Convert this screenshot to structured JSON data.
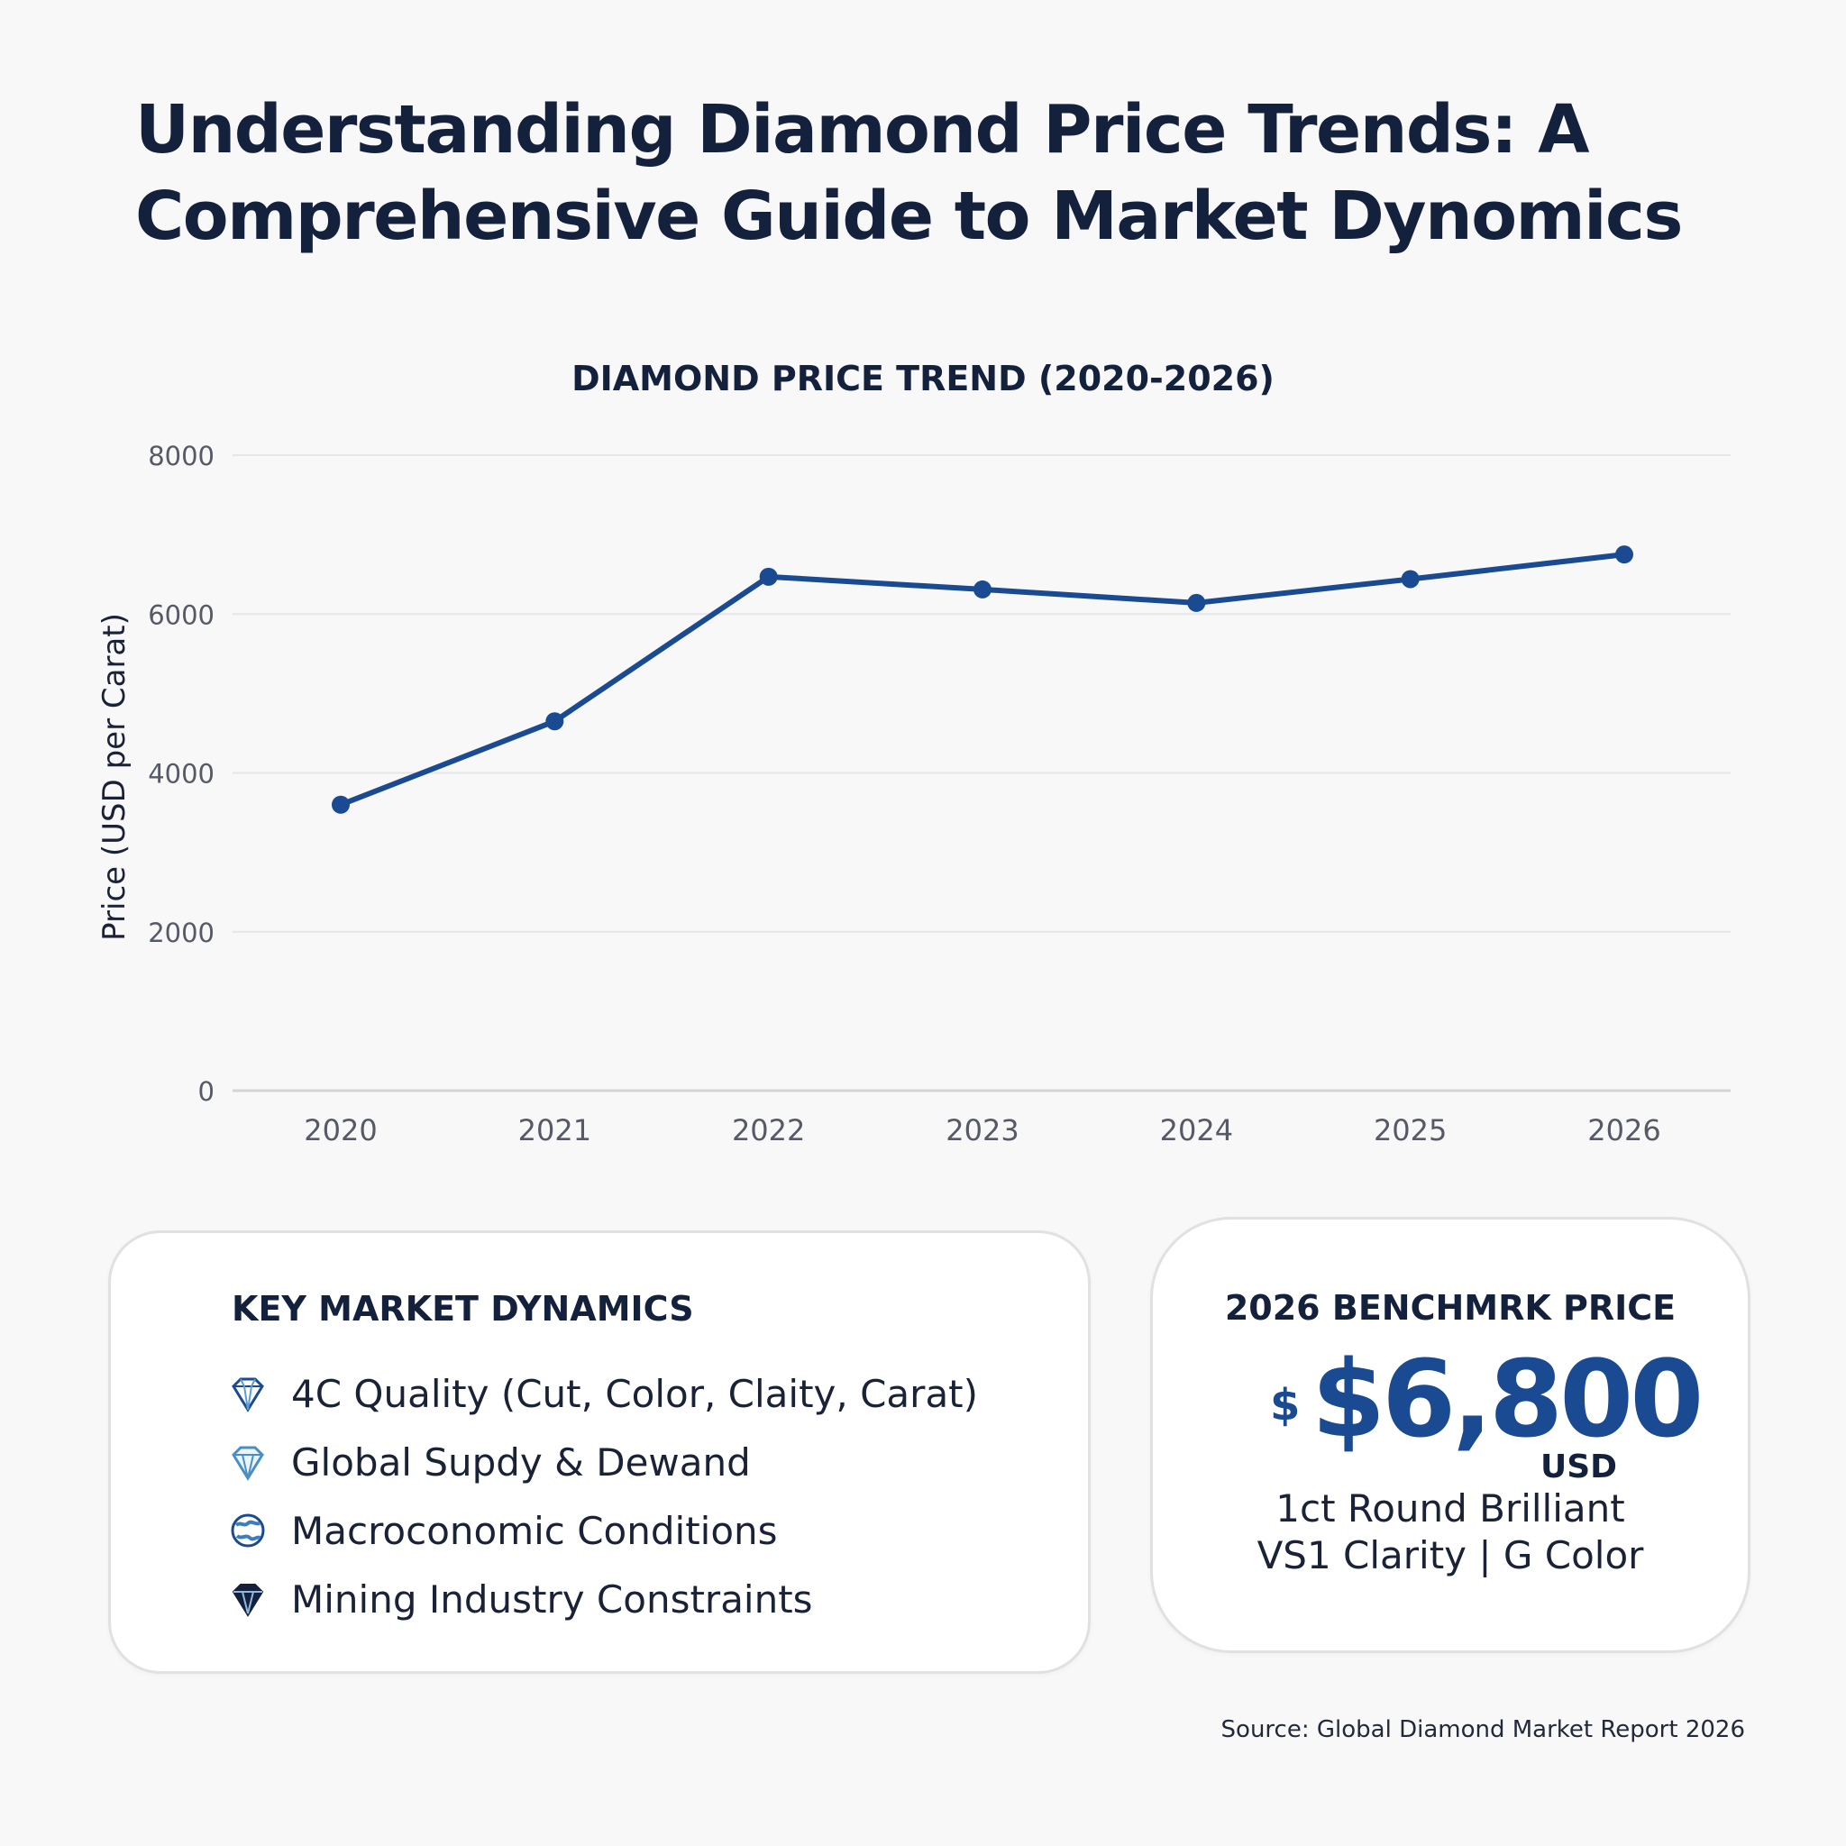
{
  "page": {
    "title_line1": "Understanding Diamond Price Trends: A",
    "title_line2": "Comprehensive Guide to Market Dynomics"
  },
  "colors": {
    "title": "#14213d",
    "line": "#1a4a91",
    "gridline": "#e6e6e8",
    "axis_text": "#555a66",
    "card_border": "#e1e1e4"
  },
  "chart_data": {
    "type": "line",
    "title": "DIAMOND PRICE TREND (2020-2026)",
    "xlabel": "",
    "ylabel": "Price (USD per Carat)",
    "x": [
      "2020",
      "2021",
      "2022",
      "2023",
      "2024",
      "2025",
      "2026"
    ],
    "series": [
      {
        "values": [
          3600,
          4650,
          6470,
          6310,
          6140,
          6440,
          6750
        ]
      }
    ],
    "ylim": [
      0,
      8000
    ],
    "yticks": [
      0,
      2000,
      4000,
      6000,
      8000
    ],
    "ytick_labels": [
      "0",
      "2000",
      "4000",
      "6000",
      "8000"
    ],
    "grid": true,
    "legend": "none",
    "markers": true
  },
  "dynamics": {
    "heading": "KEY MARKET DYNAMICS",
    "items": [
      {
        "icon": "diamond-icon",
        "label": "4C Quality (Cut, Color, Claity, Carat)"
      },
      {
        "icon": "diamond-facet-icon",
        "label": "Global Supdy & Dewand"
      },
      {
        "icon": "globe-icon",
        "label": "Macroconomic Conditions"
      },
      {
        "icon": "dark-diamond-icon",
        "label": "Mining Industry Constraints"
      }
    ]
  },
  "benchmark": {
    "heading": "2026 BENCHMRK PRICE",
    "currency_symbol": "$",
    "price": "$6,800",
    "unit": "USD",
    "line1": "1ct Round Brilliant",
    "line2": "VS1 Clarity | G Color"
  },
  "source": "Source: Global Diamond Market Report 2026"
}
